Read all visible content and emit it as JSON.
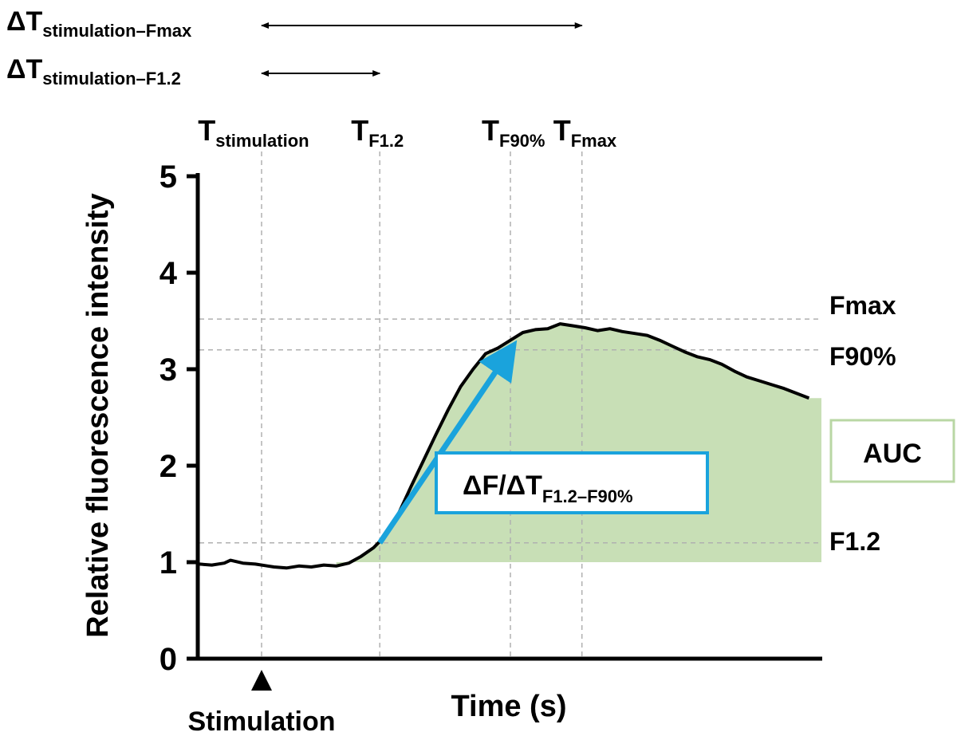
{
  "chart_data": {
    "type": "line",
    "ylabel": "Relative fluorescence intensity",
    "xlabel": "Time (s)",
    "ylim": [
      0,
      5
    ],
    "xlim": [
      0,
      100
    ],
    "yticks": [
      "0",
      "1",
      "2",
      "3",
      "4",
      "5"
    ],
    "grid": false,
    "series": [
      {
        "x": [
          0,
          2,
          4,
          5,
          7,
          9,
          11,
          12,
          14,
          16,
          18,
          20,
          22,
          24,
          26,
          28,
          30,
          32,
          34,
          36,
          38,
          40,
          42,
          44,
          46,
          48,
          50,
          52,
          54,
          56,
          58,
          60,
          62,
          64,
          66,
          68,
          70,
          72,
          74,
          76,
          78,
          80,
          82,
          84,
          86,
          88,
          90,
          92,
          94,
          96,
          98
        ],
        "values": [
          0.98,
          0.97,
          0.99,
          1.02,
          0.99,
          0.98,
          0.96,
          0.95,
          0.94,
          0.96,
          0.95,
          0.97,
          0.96,
          0.99,
          1.06,
          1.15,
          1.28,
          1.5,
          1.78,
          2.05,
          2.32,
          2.58,
          2.82,
          3.0,
          3.16,
          3.22,
          3.3,
          3.38,
          3.41,
          3.42,
          3.47,
          3.45,
          3.43,
          3.4,
          3.42,
          3.39,
          3.37,
          3.35,
          3.3,
          3.24,
          3.18,
          3.13,
          3.1,
          3.05,
          2.98,
          2.92,
          2.88,
          2.84,
          2.8,
          2.75,
          2.7
        ]
      }
    ],
    "thresholds": {
      "fmax": {
        "label": "Fmax",
        "value": 3.52
      },
      "f90": {
        "label": "F90%",
        "value": 3.2
      },
      "f12": {
        "label": "F1.2",
        "value": 1.2
      }
    },
    "time_markers": [
      {
        "main": "T",
        "sub": "stimulation",
        "x": 10
      },
      {
        "main": "T",
        "sub": "F1.2",
        "x": 29
      },
      {
        "main": "T",
        "sub": "F90%",
        "x": 50
      },
      {
        "main": "T",
        "sub": "Fmax",
        "x": 61.5
      }
    ],
    "intervals": [
      {
        "main": "ΔT",
        "sub": "stimulation–Fmax",
        "from": 10,
        "to": 61.5
      },
      {
        "main": "ΔT",
        "sub": "stimulation–F1.2",
        "from": 10,
        "to": 29
      }
    ],
    "auc": {
      "label": "AUC",
      "x_from": 22,
      "x_to": 100,
      "baseline": 1.0,
      "color": "#c8dfb6",
      "border": "#b9d7a4"
    },
    "slope": {
      "label_main": "ΔF/ΔT",
      "label_sub": "F1.2–F90%",
      "x_from": 29,
      "y_from": 1.2,
      "x_to": 50,
      "y_to": 3.2,
      "color": "#1aa3dc"
    },
    "stimulation": {
      "label": "Stimulation",
      "x": 10
    },
    "colors": {
      "line": "#000000",
      "guide": "#b0b0b0",
      "arrow": "#1aa3dc",
      "auc_fill": "#c8dfb6"
    }
  }
}
